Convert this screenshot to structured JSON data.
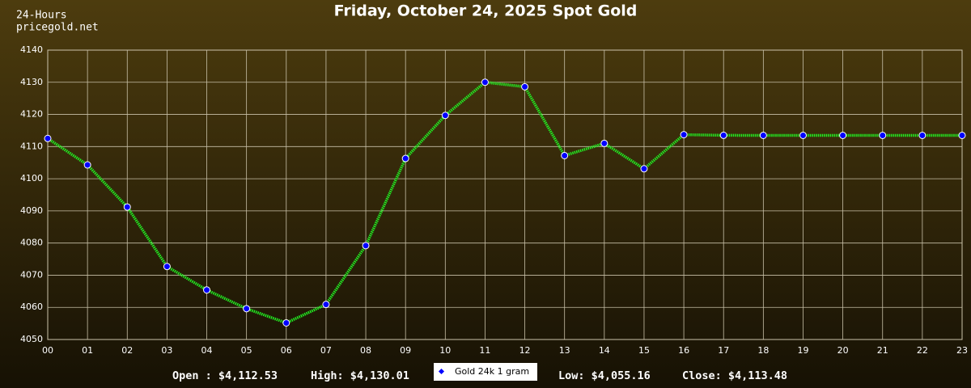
{
  "chart_data": {
    "type": "line",
    "title": "Friday, October 24, 2025 Spot Gold",
    "subtitle": [
      "24-Hours",
      "pricegold.net"
    ],
    "categories": [
      "00",
      "01",
      "02",
      "03",
      "04",
      "05",
      "06",
      "07",
      "08",
      "09",
      "10",
      "11",
      "12",
      "13",
      "14",
      "15",
      "16",
      "17",
      "18",
      "19",
      "20",
      "21",
      "22",
      "23"
    ],
    "series": [
      {
        "name": "Gold 24k 1 gram",
        "color": "#22ee22",
        "marker_color": "#0000ff",
        "values": [
          4112.53,
          4104.3,
          4091.2,
          4072.7,
          4065.4,
          4059.6,
          4055.16,
          4060.9,
          4079.2,
          4106.3,
          4119.7,
          4130.01,
          4128.6,
          4107.2,
          4111.0,
          4103.1,
          4113.7,
          4113.5,
          4113.48,
          4113.48,
          4113.48,
          4113.48,
          4113.48,
          4113.48
        ]
      }
    ],
    "ylim": [
      4050,
      4140
    ],
    "yticks": [
      4050,
      4060,
      4070,
      4080,
      4090,
      4100,
      4110,
      4120,
      4130,
      4140
    ],
    "grid": true,
    "stats": [
      "Open : $4,112.53",
      "High: $4,130.01",
      "Low: $4,055.16",
      "Close: $4,113.48"
    ]
  }
}
